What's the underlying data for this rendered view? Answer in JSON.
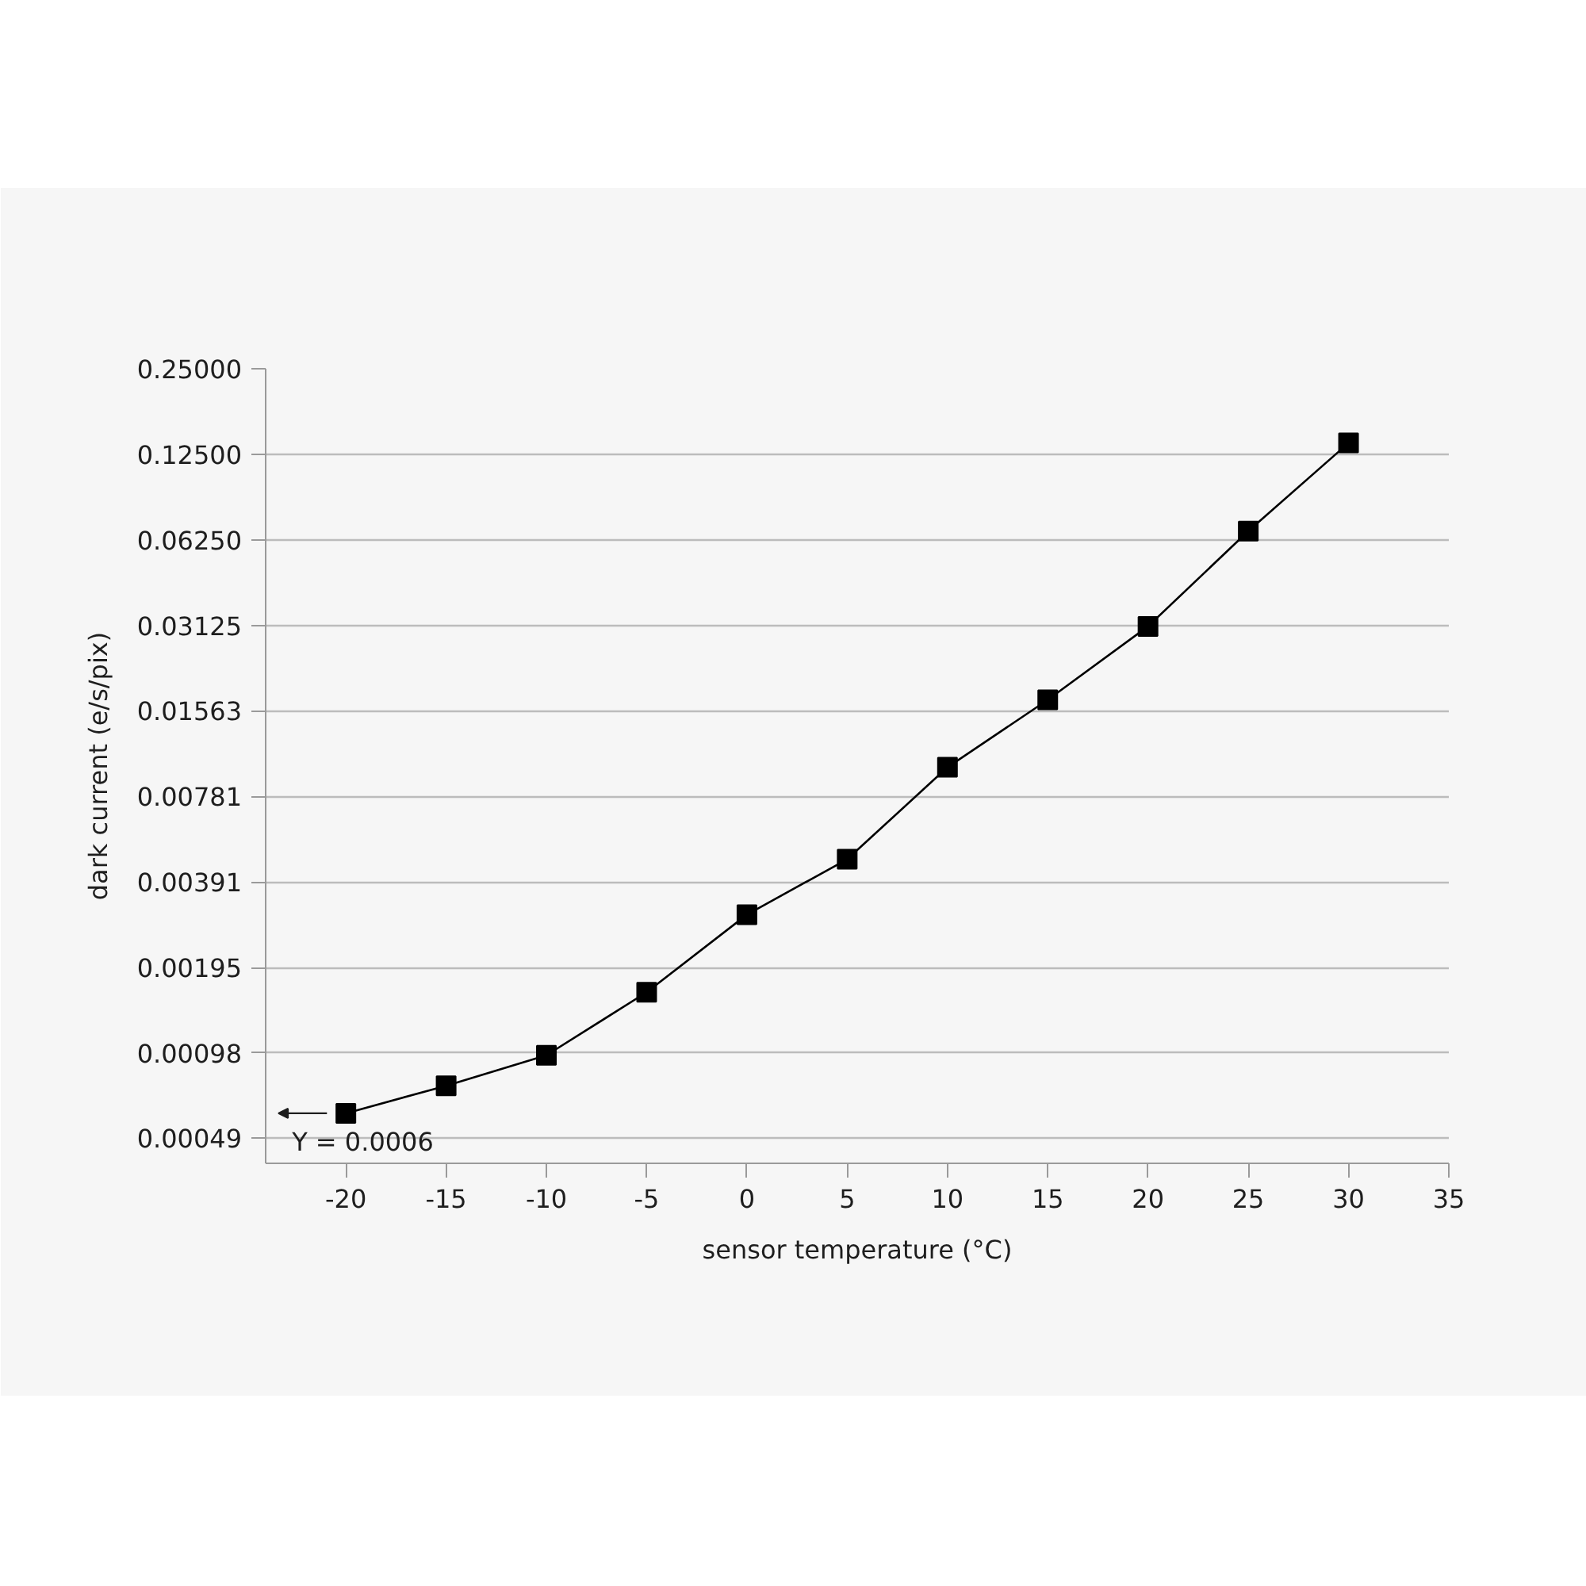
{
  "chart_data": {
    "type": "line",
    "xlabel": "sensor temperature (°C)",
    "ylabel": "dark current (e/s/pix)",
    "x": [
      -20,
      -15,
      -10,
      -5,
      0,
      5,
      10,
      15,
      20,
      25,
      30
    ],
    "series": [
      {
        "color": "#000000",
        "values": [
          0.0006,
          0.00075,
          0.00096,
          0.0016,
          0.003,
          0.0047,
          0.0099,
          0.0171,
          0.031,
          0.0671,
          0.137
        ]
      }
    ],
    "log": "y",
    "xlim": [
      -24,
      35
    ],
    "xticks": [
      -20,
      -15,
      -10,
      -5,
      0,
      5,
      10,
      15,
      20,
      25,
      30,
      35
    ],
    "ylim": [
      0.0004,
      0.25
    ],
    "yticks": [
      {
        "value": 0.25,
        "label": "0.25000"
      },
      {
        "value": 0.125,
        "label": "0.12500"
      },
      {
        "value": 0.0625,
        "label": "0.06250"
      },
      0.03125,
      0.01563,
      0.00781,
      0.00391,
      0.00195,
      0.00098,
      0.00049
    ],
    "grid": "y",
    "marker": "square",
    "line_style": "solid",
    "annotations": [
      {
        "text": "Y = 0.0006",
        "x": -20,
        "y": 0.0006
      }
    ]
  }
}
